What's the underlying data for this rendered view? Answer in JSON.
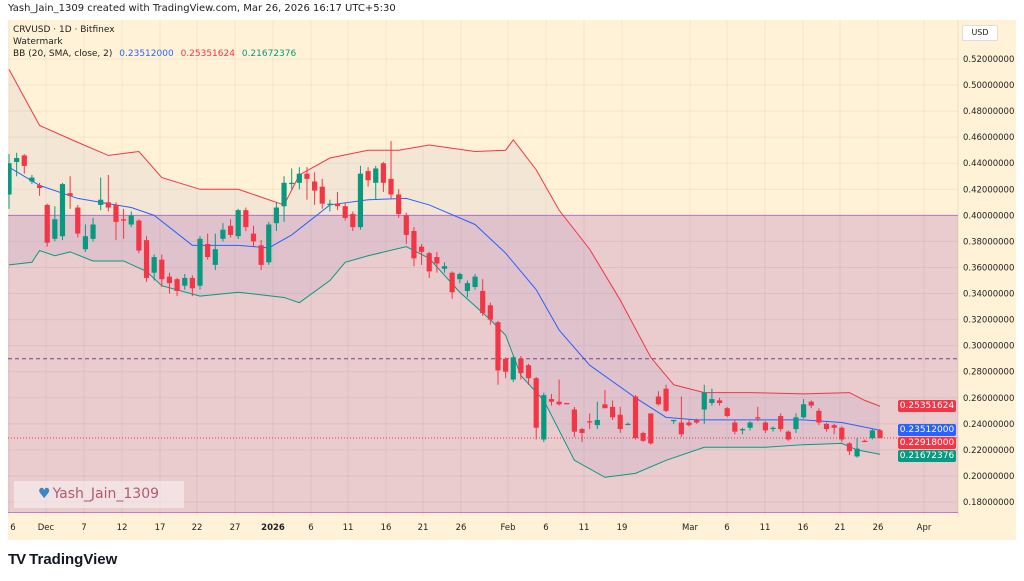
{
  "credit": "Yash_Jain_1309 created with TradingView.com, Mar 26, 2026 16:17 UTC+5:30",
  "legend": {
    "symbol": "CRVUSD · 1D · Bitfinex",
    "watermark_label": "Watermark",
    "indicator": "BB (20, SMA, close, 2)",
    "basis": "0.23512000",
    "upper": "0.25351624",
    "lower": "0.21672376"
  },
  "currency": "USD",
  "watermark_text": "Yash_Jain_1309",
  "brand": "TradingView",
  "icons": {
    "watermark": "heart-icon",
    "brand": "tradingview-logo-icon"
  },
  "colors": {
    "up": "#089981",
    "down": "#f23645",
    "basis": "#2962ff",
    "upper": "#f23645",
    "lower": "#089981",
    "background": "#fff2d7",
    "zone": "#e8c7cd"
  },
  "chart_data": {
    "type": "candlestick",
    "title": "CRVUSD · 1D · Bitfinex",
    "ylim": [
      0.17,
      0.53
    ],
    "y_ticks": [
      "0.52000000",
      "0.50000000",
      "0.48000000",
      "0.46000000",
      "0.44000000",
      "0.42000000",
      "0.40000000",
      "0.38000000",
      "0.36000000",
      "0.34000000",
      "0.32000000",
      "0.30000000",
      "0.28000000",
      "0.26000000",
      "0.24000000",
      "0.22000000",
      "0.20000000",
      "0.18000000"
    ],
    "x_ticks": [
      "6",
      "Dec",
      "7",
      "12",
      "17",
      "22",
      "27",
      "2026",
      "6",
      "11",
      "16",
      "21",
      "26",
      "Feb",
      "6",
      "11",
      "19",
      "Mar",
      "6",
      "11",
      "16",
      "21",
      "26",
      "Apr"
    ],
    "grid": true,
    "zone": {
      "top": 0.4,
      "bottom": 0.172
    },
    "dashed_level": 0.29,
    "last_price": "0.22918000",
    "price_tags": [
      {
        "value": "0.25351624",
        "color": "#f23645"
      },
      {
        "value": "0.23512000",
        "color": "#2962ff"
      },
      {
        "value": "0.22918000",
        "color": "#f23645"
      },
      {
        "value": "0.21672376",
        "color": "#089981"
      }
    ],
    "candles_ohlc": [
      [
        0.416,
        0.447,
        0.405,
        0.44
      ],
      [
        0.441,
        0.448,
        0.43,
        0.444
      ],
      [
        0.446,
        0.447,
        0.432,
        0.438
      ],
      [
        0.426,
        0.431,
        0.424,
        0.429
      ],
      [
        0.423,
        0.425,
        0.415,
        0.421
      ],
      [
        0.408,
        0.409,
        0.376,
        0.379
      ],
      [
        0.382,
        0.407,
        0.38,
        0.397
      ],
      [
        0.384,
        0.425,
        0.381,
        0.424
      ],
      [
        0.417,
        0.43,
        0.405,
        0.415
      ],
      [
        0.406,
        0.408,
        0.383,
        0.386
      ],
      [
        0.374,
        0.393,
        0.372,
        0.384
      ],
      [
        0.382,
        0.398,
        0.38,
        0.393
      ],
      [
        0.408,
        0.429,
        0.404,
        0.412
      ],
      [
        0.41,
        0.431,
        0.403,
        0.406
      ],
      [
        0.408,
        0.41,
        0.381,
        0.395
      ],
      [
        0.397,
        0.405,
        0.382,
        0.396
      ],
      [
        0.393,
        0.403,
        0.391,
        0.4
      ],
      [
        0.396,
        0.397,
        0.371,
        0.373
      ],
      [
        0.381,
        0.384,
        0.349,
        0.352
      ],
      [
        0.356,
        0.37,
        0.35,
        0.368
      ],
      [
        0.366,
        0.37,
        0.345,
        0.351
      ],
      [
        0.353,
        0.356,
        0.34,
        0.348
      ],
      [
        0.351,
        0.352,
        0.338,
        0.342
      ],
      [
        0.346,
        0.355,
        0.343,
        0.352
      ],
      [
        0.352,
        0.354,
        0.338,
        0.344
      ],
      [
        0.346,
        0.384,
        0.343,
        0.382
      ],
      [
        0.378,
        0.386,
        0.366,
        0.368
      ],
      [
        0.362,
        0.386,
        0.358,
        0.374
      ],
      [
        0.382,
        0.394,
        0.38,
        0.389
      ],
      [
        0.392,
        0.397,
        0.383,
        0.385
      ],
      [
        0.384,
        0.405,
        0.382,
        0.404
      ],
      [
        0.404,
        0.406,
        0.388,
        0.391
      ],
      [
        0.386,
        0.392,
        0.376,
        0.38
      ],
      [
        0.377,
        0.381,
        0.358,
        0.362
      ],
      [
        0.364,
        0.395,
        0.362,
        0.393
      ],
      [
        0.394,
        0.41,
        0.388,
        0.406
      ],
      [
        0.407,
        0.43,
        0.395,
        0.425
      ],
      [
        0.424,
        0.436,
        0.42,
        0.425
      ],
      [
        0.425,
        0.437,
        0.42,
        0.432
      ],
      [
        0.432,
        0.437,
        0.412,
        0.428
      ],
      [
        0.426,
        0.433,
        0.408,
        0.419
      ],
      [
        0.422,
        0.428,
        0.405,
        0.409
      ],
      [
        0.408,
        0.412,
        0.403,
        0.409
      ],
      [
        0.409,
        0.418,
        0.404,
        0.407
      ],
      [
        0.407,
        0.41,
        0.396,
        0.398
      ],
      [
        0.401,
        0.403,
        0.388,
        0.391
      ],
      [
        0.391,
        0.438,
        0.389,
        0.432
      ],
      [
        0.434,
        0.437,
        0.422,
        0.427
      ],
      [
        0.425,
        0.438,
        0.412,
        0.436
      ],
      [
        0.44,
        0.441,
        0.418,
        0.425
      ],
      [
        0.428,
        0.457,
        0.413,
        0.416
      ],
      [
        0.416,
        0.42,
        0.398,
        0.401
      ],
      [
        0.4,
        0.402,
        0.378,
        0.385
      ],
      [
        0.388,
        0.391,
        0.361,
        0.367
      ],
      [
        0.376,
        0.378,
        0.362,
        0.372
      ],
      [
        0.371,
        0.372,
        0.352,
        0.357
      ],
      [
        0.368,
        0.372,
        0.356,
        0.363
      ],
      [
        0.359,
        0.364,
        0.356,
        0.361
      ],
      [
        0.356,
        0.357,
        0.336,
        0.341
      ],
      [
        0.351,
        0.356,
        0.348,
        0.355
      ],
      [
        0.342,
        0.35,
        0.337,
        0.348
      ],
      [
        0.345,
        0.355,
        0.343,
        0.353
      ],
      [
        0.342,
        0.351,
        0.323,
        0.325
      ],
      [
        0.331,
        0.333,
        0.316,
        0.32
      ],
      [
        0.318,
        0.319,
        0.27,
        0.281
      ],
      [
        0.29,
        0.291,
        0.275,
        0.28
      ],
      [
        0.274,
        0.292,
        0.272,
        0.291
      ],
      [
        0.29,
        0.292,
        0.274,
        0.279
      ],
      [
        0.285,
        0.286,
        0.27,
        0.275
      ],
      [
        0.275,
        0.276,
        0.228,
        0.237
      ],
      [
        0.228,
        0.264,
        0.226,
        0.262
      ],
      [
        0.259,
        0.263,
        0.254,
        0.257
      ],
      [
        0.257,
        0.274,
        0.254,
        0.255
      ],
      [
        0.256,
        0.256,
        0.255,
        0.255
      ],
      [
        0.251,
        0.253,
        0.23,
        0.234
      ],
      [
        0.236,
        0.237,
        0.226,
        0.233
      ],
      [
        0.242,
        0.248,
        0.236,
        0.241
      ],
      [
        0.239,
        0.257,
        0.236,
        0.243
      ],
      [
        0.255,
        0.266,
        0.252,
        0.252
      ],
      [
        0.253,
        0.258,
        0.243,
        0.245
      ],
      [
        0.247,
        0.253,
        0.233,
        0.236
      ],
      [
        0.24,
        0.241,
        0.239,
        0.24
      ],
      [
        0.261,
        0.262,
        0.228,
        0.229
      ],
      [
        0.233,
        0.234,
        0.226,
        0.227
      ],
      [
        0.248,
        0.248,
        0.224,
        0.225
      ],
      [
        0.261,
        0.265,
        0.254,
        0.255
      ],
      [
        0.267,
        0.27,
        0.249,
        0.25
      ],
      [
        0.242,
        0.243,
        0.24,
        0.243
      ],
      [
        0.241,
        0.261,
        0.23,
        0.232
      ],
      [
        0.241,
        0.243,
        0.238,
        0.239
      ],
      [
        0.243,
        0.244,
        0.24,
        0.241
      ],
      [
        0.251,
        0.27,
        0.24,
        0.264
      ],
      [
        0.256,
        0.267,
        0.254,
        0.259
      ],
      [
        0.258,
        0.26,
        0.254,
        0.256
      ],
      [
        0.252,
        0.253,
        0.245,
        0.246
      ],
      [
        0.241,
        0.243,
        0.232,
        0.234
      ],
      [
        0.235,
        0.237,
        0.232,
        0.236
      ],
      [
        0.237,
        0.242,
        0.235,
        0.241
      ],
      [
        0.245,
        0.253,
        0.242,
        0.244
      ],
      [
        0.241,
        0.242,
        0.233,
        0.235
      ],
      [
        0.236,
        0.238,
        0.234,
        0.237
      ],
      [
        0.246,
        0.248,
        0.234,
        0.236
      ],
      [
        0.234,
        0.235,
        0.227,
        0.228
      ],
      [
        0.236,
        0.248,
        0.233,
        0.245
      ],
      [
        0.245,
        0.259,
        0.244,
        0.255
      ],
      [
        0.257,
        0.258,
        0.252,
        0.254
      ],
      [
        0.25,
        0.252,
        0.239,
        0.241
      ],
      [
        0.24,
        0.241,
        0.234,
        0.236
      ],
      [
        0.239,
        0.24,
        0.232,
        0.237
      ],
      [
        0.237,
        0.238,
        0.226,
        0.228
      ],
      [
        0.225,
        0.226,
        0.216,
        0.219
      ],
      [
        0.215,
        0.229,
        0.214,
        0.221
      ],
      [
        0.227,
        0.228,
        0.226,
        0.226
      ],
      [
        0.229,
        0.236,
        0.228,
        0.235
      ],
      [
        0.235,
        0.236,
        0.229,
        0.229
      ]
    ],
    "bollinger": {
      "upper": [
        [
          0,
          0.512
        ],
        [
          4,
          0.469
        ],
        [
          9,
          0.456
        ],
        [
          13,
          0.446
        ],
        [
          17,
          0.449
        ],
        [
          20,
          0.429
        ],
        [
          25,
          0.42
        ],
        [
          30,
          0.42
        ],
        [
          36,
          0.408
        ],
        [
          38,
          0.431
        ],
        [
          42,
          0.444
        ],
        [
          47,
          0.45
        ],
        [
          51,
          0.45
        ],
        [
          55,
          0.454
        ],
        [
          61,
          0.449
        ],
        [
          65,
          0.45
        ],
        [
          66,
          0.458
        ],
        [
          69,
          0.435
        ],
        [
          72,
          0.404
        ],
        [
          76,
          0.374
        ],
        [
          80,
          0.335
        ],
        [
          84,
          0.291
        ],
        [
          87,
          0.27
        ],
        [
          91,
          0.264
        ],
        [
          97,
          0.264
        ],
        [
          104,
          0.263
        ],
        [
          110,
          0.264
        ],
        [
          112,
          0.258
        ],
        [
          114,
          0.2535
        ]
      ],
      "basis": [
        [
          0,
          0.437
        ],
        [
          4,
          0.423
        ],
        [
          9,
          0.413
        ],
        [
          13,
          0.409
        ],
        [
          16,
          0.406
        ],
        [
          19,
          0.4
        ],
        [
          24,
          0.377
        ],
        [
          30,
          0.377
        ],
        [
          34,
          0.375
        ],
        [
          37,
          0.385
        ],
        [
          42,
          0.408
        ],
        [
          47,
          0.412
        ],
        [
          52,
          0.413
        ],
        [
          55,
          0.408
        ],
        [
          61,
          0.393
        ],
        [
          65,
          0.371
        ],
        [
          69,
          0.343
        ],
        [
          72,
          0.312
        ],
        [
          76,
          0.285
        ],
        [
          82,
          0.26
        ],
        [
          86,
          0.245
        ],
        [
          90,
          0.243
        ],
        [
          96,
          0.243
        ],
        [
          104,
          0.243
        ],
        [
          109,
          0.241
        ],
        [
          114,
          0.2351
        ]
      ],
      "lower": [
        [
          0,
          0.362
        ],
        [
          3,
          0.364
        ],
        [
          4,
          0.373
        ],
        [
          6,
          0.369
        ],
        [
          8,
          0.372
        ],
        [
          11,
          0.365
        ],
        [
          15,
          0.365
        ],
        [
          18,
          0.357
        ],
        [
          20,
          0.346
        ],
        [
          25,
          0.338
        ],
        [
          30,
          0.341
        ],
        [
          36,
          0.337
        ],
        [
          38,
          0.333
        ],
        [
          42,
          0.35
        ],
        [
          44,
          0.364
        ],
        [
          47,
          0.369
        ],
        [
          52,
          0.376
        ],
        [
          55,
          0.367
        ],
        [
          59,
          0.341
        ],
        [
          63,
          0.32
        ],
        [
          65,
          0.308
        ],
        [
          67,
          0.277
        ],
        [
          70,
          0.258
        ],
        [
          74,
          0.212
        ],
        [
          78,
          0.199
        ],
        [
          82,
          0.202
        ],
        [
          86,
          0.212
        ],
        [
          91,
          0.222
        ],
        [
          99,
          0.222
        ],
        [
          104,
          0.224
        ],
        [
          109,
          0.225
        ],
        [
          111,
          0.22
        ],
        [
          114,
          0.2167
        ]
      ]
    }
  }
}
